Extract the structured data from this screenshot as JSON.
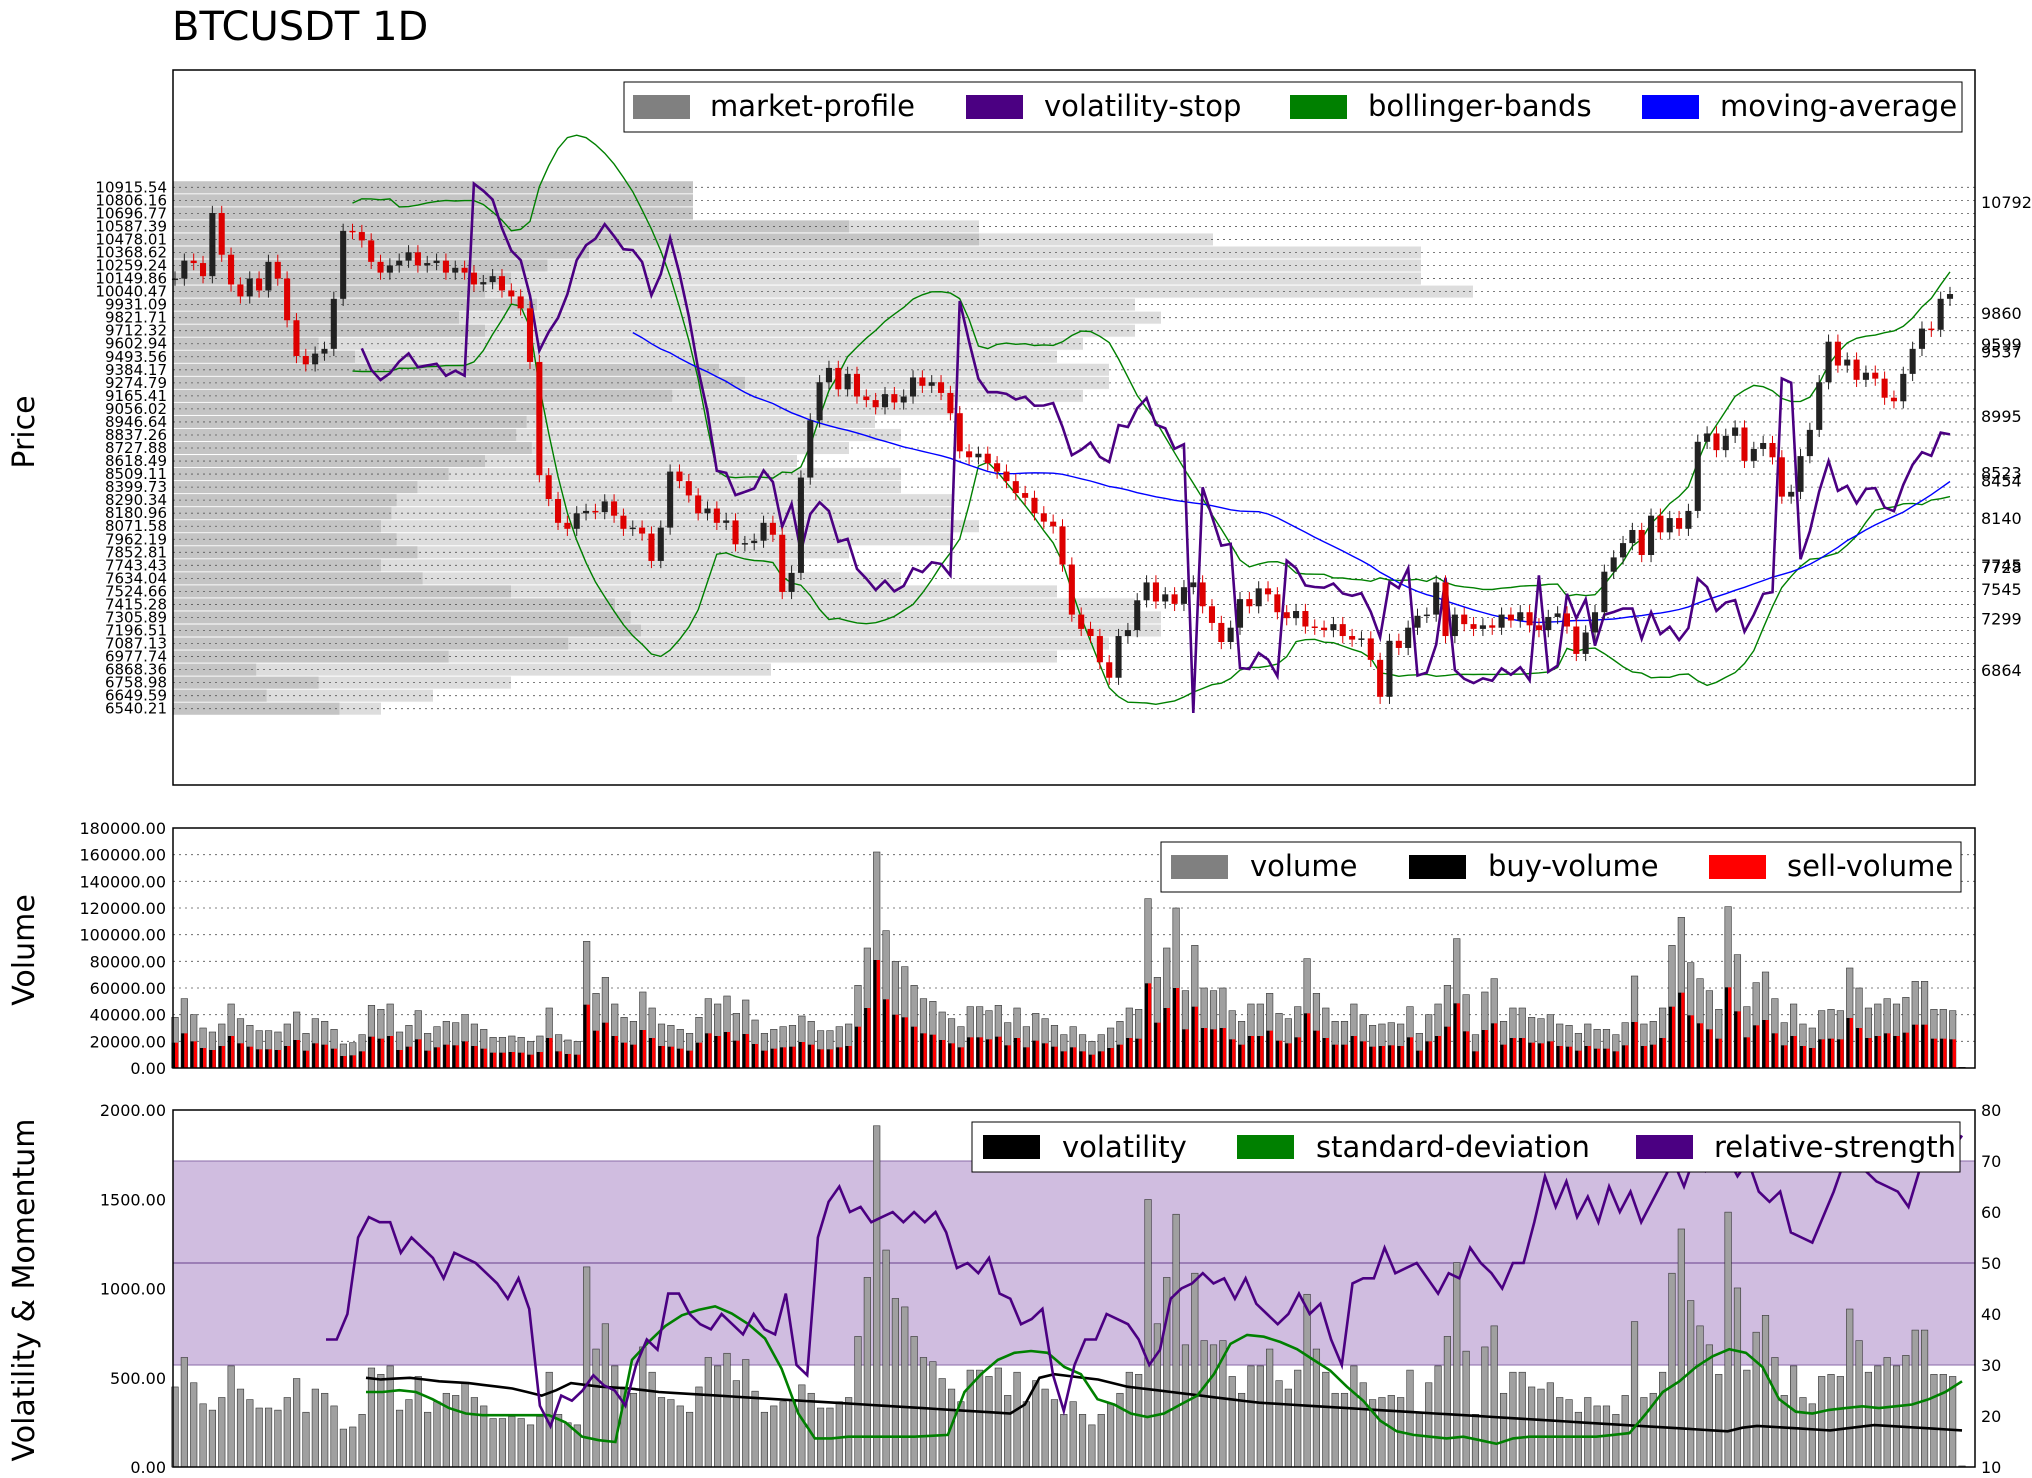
{
  "title": "BTCUSDT 1D",
  "colors": {
    "market_profile_light": "#dddddd",
    "market_profile_dark": "#c4c4c4",
    "volatility_stop": "#4b0082",
    "bollinger": "#008000",
    "moving_average": "#0000ff",
    "candle_up": "#222222",
    "candle_down": "#dd0000",
    "rsi_band": "#d0bde0"
  },
  "chart_data": [
    {
      "type": "candlestick",
      "name": "price",
      "ylabel": "Price",
      "ylim": [
        5900,
        11900
      ],
      "legend_position": "top-right",
      "legend": [
        "market-profile",
        "volatility-stop",
        "bollinger-bands",
        "moving-average"
      ],
      "profile_levels": [
        "10915.54",
        "10806.16",
        "10696.77",
        "10587.39",
        "10478.01",
        "10368.62",
        "10259.24",
        "10149.86",
        "10040.47",
        "9931.09",
        "9821.71",
        "9712.32",
        "9602.94",
        "9493.56",
        "9384.17",
        "9274.79",
        "9165.41",
        "9056.02",
        "8946.64",
        "8837.26",
        "8727.88",
        "8618.49",
        "8509.11",
        "8399.73",
        "8290.34",
        "8180.96",
        "8071.58",
        "7962.19",
        "7852.81",
        "7743.43",
        "7634.04",
        "7524.66",
        "7415.28",
        "7305.89",
        "7196.51",
        "7087.13",
        "6977.74",
        "6868.36",
        "6758.98",
        "6649.59",
        "6540.21"
      ],
      "right_ticks": [
        "10792",
        "9860",
        "9599",
        "9537",
        "8995",
        "8523",
        "8454",
        "8140",
        "7745",
        "7728",
        "7545",
        "7299",
        "6864"
      ],
      "profile_short": [
        1000,
        1000,
        1000,
        1300,
        1550,
        800,
        720,
        650,
        600,
        700,
        550,
        600,
        280,
        350,
        1050,
        1100,
        960,
        700,
        680,
        660,
        690,
        600,
        530,
        470,
        430,
        420,
        400,
        430,
        470,
        400,
        480,
        650,
        850,
        880,
        900,
        760,
        530,
        160,
        280,
        180,
        320
      ],
      "profile_long": [
        1000,
        1000,
        1000,
        1550,
        2000,
        2400,
        2400,
        2400,
        2500,
        1850,
        1900,
        1850,
        1750,
        1700,
        1800,
        1800,
        1750,
        1500,
        1350,
        1400,
        1300,
        1200,
        1400,
        1400,
        1500,
        1500,
        1550,
        1500,
        1300,
        1200,
        1400,
        1700,
        1850,
        1900,
        1900,
        1800,
        1700,
        1150,
        650,
        500,
        400
      ],
      "closes": [
        10150,
        10300,
        10280,
        10170,
        10700,
        10350,
        10100,
        10000,
        10150,
        10050,
        10290,
        10150,
        9800,
        9500,
        9430,
        9520,
        9560,
        9980,
        10550,
        10540,
        10470,
        10290,
        10200,
        10260,
        10300,
        10370,
        10260,
        10280,
        10300,
        10200,
        10240,
        10200,
        10100,
        10120,
        10170,
        10050,
        10000,
        9900,
        9450,
        8500,
        8300,
        8100,
        8050,
        8180,
        8200,
        8190,
        8280,
        8160,
        8050,
        8060,
        8010,
        7780,
        8060,
        8530,
        8450,
        8330,
        8180,
        8220,
        8100,
        8120,
        7920,
        7930,
        7950,
        8100,
        8000,
        7520,
        7680,
        8480,
        8960,
        9280,
        9400,
        9220,
        9350,
        9160,
        9130,
        9070,
        9180,
        9110,
        9160,
        9320,
        9250,
        9280,
        9190,
        9020,
        8700,
        8650,
        8680,
        8600,
        8530,
        8450,
        8350,
        8310,
        8180,
        8110,
        8070,
        7750,
        7330,
        7210,
        7150,
        6930,
        6800,
        7150,
        7200,
        7450,
        7600,
        7440,
        7500,
        7420,
        7560,
        7600,
        7400,
        7260,
        7100,
        7220,
        7460,
        7400,
        7550,
        7500,
        7350,
        7300,
        7360,
        7230,
        7220,
        7200,
        7250,
        7150,
        7120,
        7130,
        6950,
        6640,
        7110,
        7050,
        7220,
        7320,
        7330,
        7600,
        7150,
        7330,
        7250,
        7210,
        7240,
        7220,
        7330,
        7280,
        7350,
        7240,
        7200,
        7310,
        7340,
        7230,
        7000,
        7180,
        7350,
        7690,
        7810,
        7930,
        8040,
        7830,
        8160,
        8020,
        8140,
        8050,
        8200,
        8780,
        8850,
        8710,
        8830,
        8900,
        8620,
        8720,
        8770,
        8650,
        8320,
        8360,
        8660,
        8880,
        9280,
        9620,
        9420,
        9470,
        9300,
        9360,
        9310,
        9150,
        9120,
        9350,
        9560,
        9730,
        9720,
        9980,
        10020
      ]
    },
    {
      "type": "bar",
      "name": "volume",
      "ylabel": "Volume",
      "ylim": [
        0,
        180000
      ],
      "yticks": [
        "180000.00",
        "160000.00",
        "140000.00",
        "120000.00",
        "100000.00",
        "80000.00",
        "60000.00",
        "40000.00",
        "20000.00",
        "0.00"
      ],
      "legend_position": "top-right",
      "legend": [
        "volume",
        "buy-volume",
        "sell-volume"
      ],
      "volume": [
        38000,
        52000,
        40000,
        30000,
        27000,
        33000,
        48000,
        37000,
        32000,
        28000,
        28000,
        27000,
        33000,
        42000,
        26000,
        37000,
        35000,
        29000,
        18000,
        19000,
        25000,
        47000,
        44000,
        48000,
        27000,
        32000,
        43000,
        26000,
        31000,
        35000,
        34000,
        40000,
        33000,
        29000,
        23000,
        23000,
        24000,
        23000,
        20000,
        24000,
        45000,
        25000,
        21000,
        20000,
        95000,
        56000,
        68000,
        48000,
        38000,
        35000,
        57000,
        45000,
        33000,
        32000,
        29000,
        26000,
        38000,
        52000,
        48000,
        54000,
        41000,
        51000,
        36000,
        26000,
        29000,
        31000,
        32000,
        39000,
        35000,
        28000,
        28000,
        31000,
        33000,
        62000,
        90000,
        162000,
        103000,
        80000,
        76000,
        62000,
        52000,
        50000,
        42000,
        37000,
        31000,
        46000,
        46000,
        43000,
        47000,
        34000,
        45000,
        31000,
        41000,
        37000,
        32000,
        25000,
        31000,
        25000,
        20000,
        25000,
        30000,
        35000,
        45000,
        44000,
        127000,
        68000,
        90000,
        120000,
        58000,
        92000,
        60000,
        58000,
        60000,
        43000,
        35000,
        48000,
        48000,
        56000,
        41000,
        37000,
        46000,
        82000,
        56000,
        45000,
        35000,
        35000,
        48000,
        40000,
        32000,
        33000,
        34000,
        33000,
        46000,
        26000,
        40000,
        48000,
        62000,
        97000,
        55000,
        25000,
        57000,
        67000,
        35000,
        45000,
        45000,
        38000,
        37000,
        40000,
        33000,
        32000,
        26000,
        33000,
        29000,
        29000,
        25000,
        34000,
        69000,
        33000,
        35000,
        45000,
        92000,
        113000,
        79000,
        67000,
        58000,
        44000,
        121000,
        85000,
        46000,
        64000,
        72000,
        52000,
        34000,
        48000,
        33000,
        30000,
        43000,
        44000,
        43000,
        75000,
        60000,
        45000,
        48000,
        52000,
        48000,
        53000,
        65000,
        65000,
        44000,
        44000,
        43000,
        500
      ],
      "buy_share": [
        0.5,
        0.5,
        0.5,
        0.5,
        0.5,
        0.5,
        0.5,
        0.5,
        0.5,
        0.5,
        0.5,
        0.5,
        0.5,
        0.5,
        0.5,
        0.5,
        0.5,
        0.5,
        0.5,
        0.5,
        0.5,
        0.5,
        0.5,
        0.5,
        0.5,
        0.5,
        0.5,
        0.5,
        0.5,
        0.5,
        0.5,
        0.5,
        0.5,
        0.5,
        0.5,
        0.5,
        0.5,
        0.5,
        0.5,
        0.5,
        0.5,
        0.5,
        0.5,
        0.5,
        0.5,
        0.5,
        0.5,
        0.5,
        0.5,
        0.5,
        0.5,
        0.5,
        0.5,
        0.5,
        0.5,
        0.5,
        0.5,
        0.5,
        0.5,
        0.5,
        0.5,
        0.5,
        0.5,
        0.5,
        0.5,
        0.5,
        0.5,
        0.5,
        0.5,
        0.5,
        0.5,
        0.5,
        0.5,
        0.5,
        0.5,
        0.5,
        0.5,
        0.5,
        0.5,
        0.5,
        0.5,
        0.5,
        0.5,
        0.5,
        0.5,
        0.5,
        0.5,
        0.5,
        0.5,
        0.5,
        0.5,
        0.5,
        0.5,
        0.5,
        0.5,
        0.5,
        0.5,
        0.5,
        0.5,
        0.5,
        0.5,
        0.5,
        0.5,
        0.5,
        0.5,
        0.5,
        0.5,
        0.5,
        0.5,
        0.5,
        0.5,
        0.5,
        0.5,
        0.5,
        0.5,
        0.5,
        0.5,
        0.5,
        0.5,
        0.5,
        0.5,
        0.5,
        0.5,
        0.5,
        0.5,
        0.5,
        0.5,
        0.5,
        0.5,
        0.5,
        0.5,
        0.5,
        0.5,
        0.5,
        0.5,
        0.5,
        0.5,
        0.5,
        0.5,
        0.5,
        0.5,
        0.5,
        0.5,
        0.5,
        0.5,
        0.5,
        0.5,
        0.5,
        0.5,
        0.5,
        0.5,
        0.5,
        0.5,
        0.5,
        0.5,
        0.5,
        0.5,
        0.5,
        0.5,
        0.5,
        0.5,
        0.5,
        0.5,
        0.5,
        0.5,
        0.5,
        0.5,
        0.5,
        0.5,
        0.5,
        0.5,
        0.5,
        0.5,
        0.5,
        0.5,
        0.5,
        0.5,
        0.5,
        0.5,
        0.5,
        0.5,
        0.5,
        0.5,
        0.5,
        0.5,
        0.5,
        0.5,
        0.5,
        0.5,
        0.5,
        0.5,
        0.5,
        0.5,
        0.5,
        0.5,
        0.5
      ]
    },
    {
      "type": "line",
      "name": "volatility-momentum",
      "ylabel": "Volatility & Momentum",
      "ylim": [
        0,
        2000
      ],
      "yticks": [
        "2000.00",
        "1500.00",
        "1000.00",
        "500.00",
        "0.00"
      ],
      "y2lim": [
        10,
        80
      ],
      "y2ticks": [
        "80",
        "70",
        "60",
        "50",
        "40",
        "30",
        "20",
        "10"
      ],
      "rsi_band": [
        30,
        70
      ],
      "rsi_mid": 50,
      "legend_position": "top-right",
      "legend": [
        "volatility",
        "standard-deviation",
        "relative-strength"
      ],
      "volatility": [
        500,
        490,
        495,
        500,
        490,
        480,
        475,
        470,
        460,
        450,
        440,
        420,
        400,
        430,
        470,
        460,
        450,
        445,
        440,
        430,
        420,
        415,
        410,
        405,
        400,
        395,
        390,
        385,
        380,
        375,
        370,
        365,
        360,
        355,
        350,
        345,
        340,
        335,
        330,
        325,
        320,
        315,
        310,
        305,
        300,
        350,
        500,
        520,
        510,
        500,
        490,
        470,
        450,
        440,
        430,
        420,
        410,
        400,
        390,
        380,
        370,
        360,
        355,
        350,
        345,
        340,
        335,
        330,
        325,
        320,
        315,
        310,
        305,
        300,
        295,
        290,
        285,
        280,
        275,
        270,
        265,
        260,
        255,
        250,
        245,
        240,
        235,
        230,
        225,
        220,
        215,
        210,
        205,
        200,
        220,
        230,
        225,
        220,
        215,
        210,
        205,
        215,
        225,
        235,
        230,
        225,
        220,
        215,
        210,
        205
      ],
      "standard_deviation": [
        420,
        420,
        430,
        420,
        380,
        330,
        300,
        290,
        290,
        290,
        290,
        290,
        250,
        170,
        150,
        140,
        600,
        700,
        790,
        850,
        880,
        900,
        860,
        800,
        720,
        550,
        300,
        160,
        160,
        170,
        170,
        170,
        170,
        170,
        175,
        180,
        420,
        520,
        600,
        640,
        650,
        640,
        560,
        520,
        380,
        350,
        300,
        280,
        300,
        350,
        400,
        520,
        690,
        740,
        730,
        700,
        660,
        600,
        540,
        450,
        370,
        260,
        200,
        180,
        170,
        160,
        170,
        150,
        130,
        160,
        170,
        170,
        170,
        170,
        170,
        180,
        190,
        300,
        420,
        480,
        560,
        620,
        660,
        640,
        560,
        380,
        310,
        300,
        320,
        330,
        340,
        330,
        340,
        350,
        380,
        420,
        480
      ],
      "relative_strength": [
        35,
        35,
        40,
        55,
        59,
        58,
        58,
        52,
        55,
        53,
        51,
        47,
        52,
        51,
        50,
        48,
        46,
        43,
        47,
        41,
        22,
        18,
        24,
        23,
        25,
        28,
        26,
        25,
        22,
        30,
        35,
        33,
        44,
        44,
        40,
        38,
        37,
        40,
        38,
        36,
        40,
        37,
        36,
        44,
        30,
        28,
        55,
        62,
        65,
        60,
        61,
        58,
        59,
        60,
        58,
        60,
        58,
        60,
        56,
        49,
        50,
        48,
        51,
        44,
        43,
        38,
        39,
        41,
        28,
        21,
        30,
        35,
        35,
        40,
        39,
        38,
        35,
        30,
        33,
        43,
        45,
        46,
        48,
        46,
        47,
        43,
        47,
        42,
        40,
        38,
        40,
        44,
        40,
        42,
        35,
        30,
        46,
        47,
        47,
        53,
        48,
        49,
        50,
        47,
        44,
        48,
        47,
        53,
        50,
        48,
        45,
        50,
        50,
        58,
        67,
        61,
        66,
        59,
        63,
        58,
        65,
        60,
        64,
        58,
        62,
        66,
        70,
        65,
        71,
        68,
        70,
        71,
        67,
        70,
        64,
        62,
        64,
        56,
        55,
        54,
        59,
        64,
        70,
        70,
        68,
        66,
        65,
        64,
        61,
        68,
        69,
        70,
        72,
        75
      ]
    }
  ]
}
